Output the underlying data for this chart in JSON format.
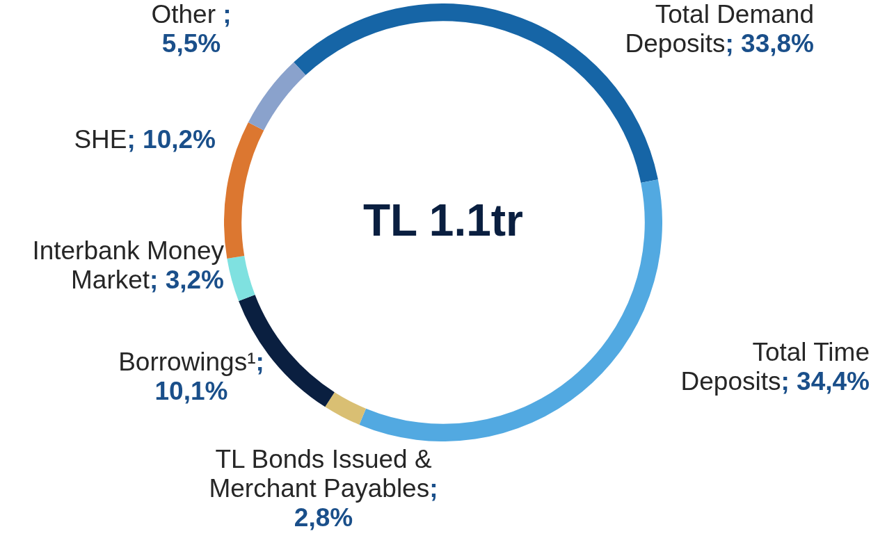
{
  "chart_data": {
    "type": "donut",
    "categories": [
      "Total Demand Deposits",
      "Total Time Deposits",
      "TL Bonds Issued & Merchant Payables",
      "Borrowings¹",
      "Interbank Money Market",
      "SHE",
      "Other"
    ],
    "values": [
      33.8,
      34.4,
      2.8,
      10.1,
      3.2,
      10.2,
      5.5
    ],
    "value_labels": [
      "; 33,8%",
      "; 34,4%",
      "; 2,8%",
      "; 10,1%",
      "; 3,2%",
      "; 10,2%",
      " ; 5,5%"
    ],
    "colors": [
      "#1665a6",
      "#52a9e1",
      "#d9bf73",
      "#0a1f40",
      "#7fe1e0",
      "#dc7730",
      "#8aa2cc"
    ],
    "annotations": [
      "TL 1.1tr"
    ],
    "legend": false
  }
}
